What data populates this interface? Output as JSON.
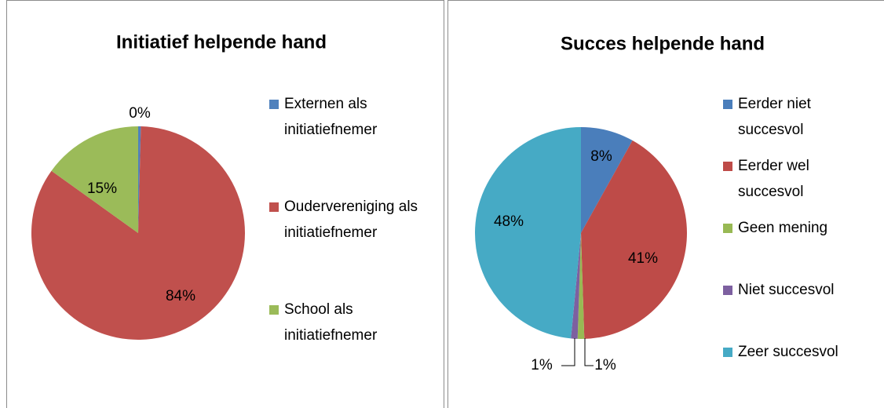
{
  "chart_data": [
    {
      "type": "pie",
      "title": "Initiatief helpende hand",
      "categories": [
        "Externen als initiatiefnemer",
        "Oudervereniging als initiatiefnemer",
        "School als initiatiefnemer"
      ],
      "values": [
        0.4,
        84,
        15
      ],
      "value_labels": [
        "0%",
        "84%",
        "15%"
      ],
      "colors": [
        "#4f81bd",
        "#c0504d",
        "#9bbb59"
      ],
      "legend": "right"
    },
    {
      "type": "pie",
      "title": "Succes helpende hand",
      "categories": [
        "Eerder niet succesvol",
        "Eerder wel succesvol",
        "Geen mening",
        "Niet succesvol",
        "Zeer succesvol"
      ],
      "values": [
        8,
        41,
        1,
        1,
        48
      ],
      "value_labels": [
        "8%",
        "41%",
        "1%",
        "1%",
        "48%"
      ],
      "colors": [
        "#4a7ebb",
        "#be4b48",
        "#98b954",
        "#7d60a0",
        "#46aac5"
      ],
      "legend": "right"
    }
  ]
}
